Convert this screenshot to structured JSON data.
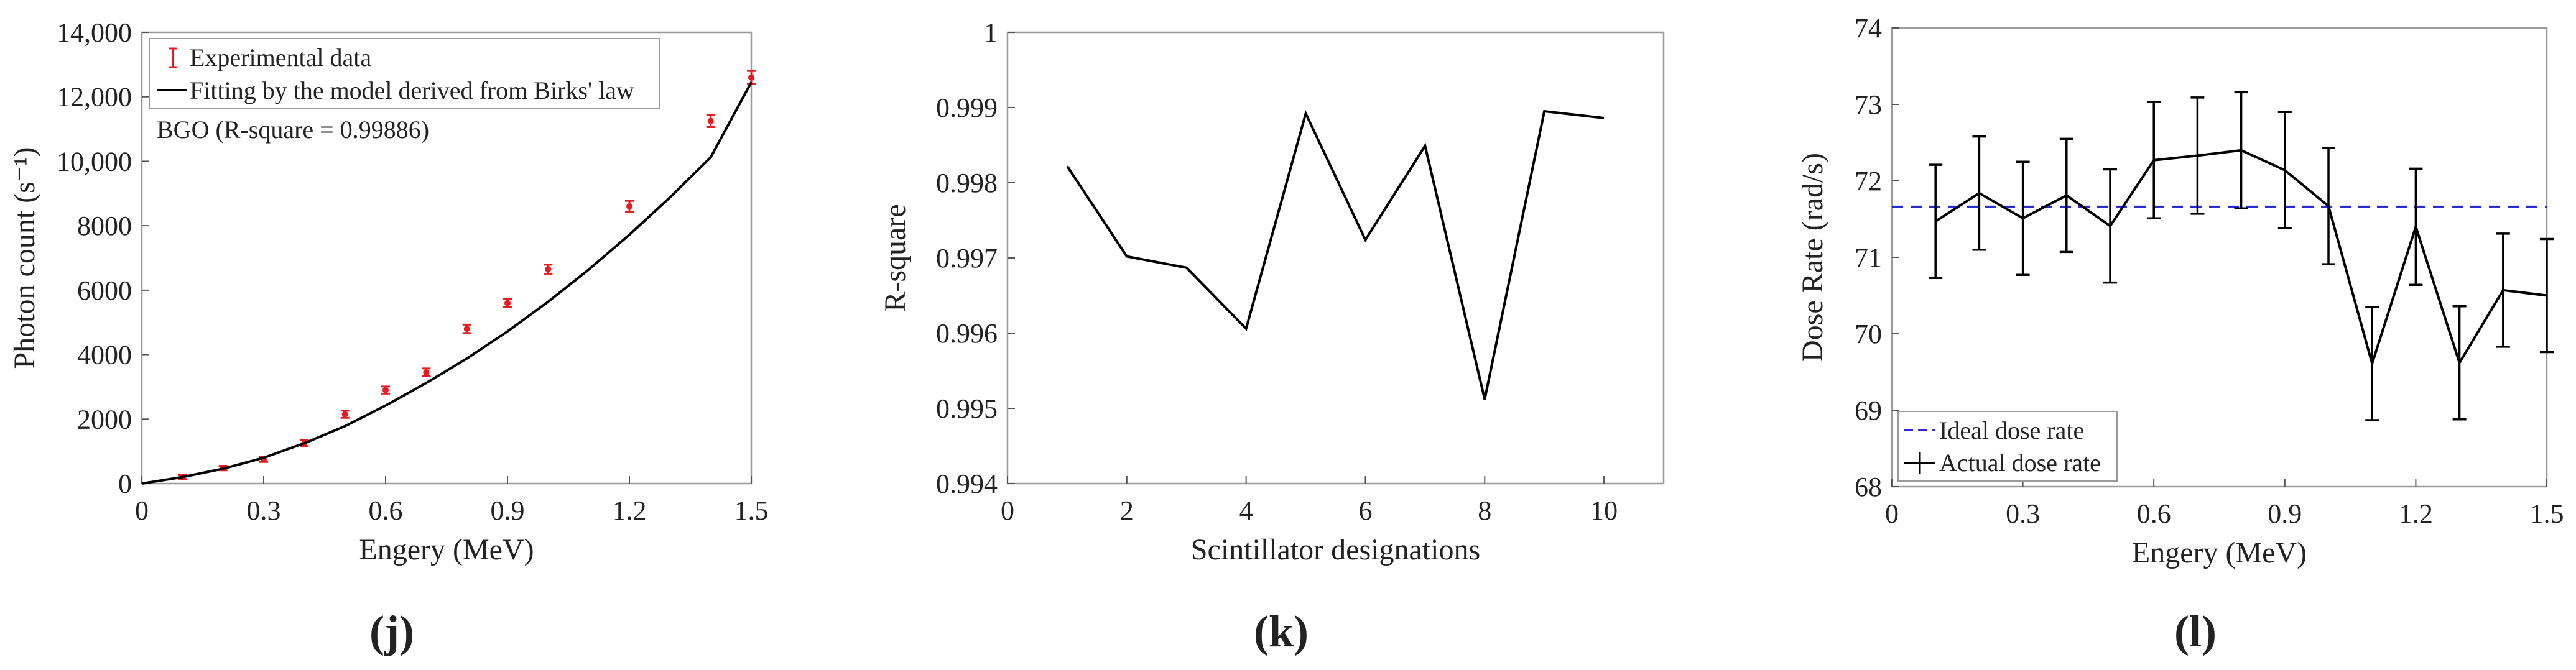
{
  "chart_data": [
    {
      "type": "scatter",
      "panel_label": "(j)",
      "xlabel": "Engery (MeV)",
      "ylabel": "Photon count (s⁻¹)",
      "xlim": [
        0,
        1.5
      ],
      "ylim": [
        0,
        14000
      ],
      "xticks": [
        0,
        0.3,
        0.6,
        0.9,
        1.2,
        1.5
      ],
      "xtick_labels": [
        "0",
        "0.3",
        "0.6",
        "0.9",
        "1.2",
        "1.5"
      ],
      "yticks": [
        0,
        2000,
        4000,
        6000,
        8000,
        10000,
        12000,
        14000
      ],
      "ytick_labels": [
        "0",
        "2000",
        "4000",
        "6000",
        "8000",
        "10,000",
        "12,000",
        "14,000"
      ],
      "annotation": "BGO (R-square = 0.99886)",
      "legend_position": "top-left",
      "series": [
        {
          "name": "Experimental data",
          "color": "#e8191f",
          "style": "errorbar",
          "x": [
            0.1,
            0.2,
            0.3,
            0.4,
            0.5,
            0.6,
            0.7,
            0.8,
            0.9,
            1.0,
            1.2,
            1.4,
            1.5
          ],
          "y": [
            200,
            480,
            750,
            1250,
            2150,
            2900,
            3450,
            4800,
            5600,
            6650,
            8600,
            11250,
            12600
          ],
          "err": [
            60,
            70,
            80,
            90,
            110,
            110,
            120,
            130,
            130,
            140,
            170,
            190,
            200
          ]
        },
        {
          "name": "Fitting by the model derived from Birks' law",
          "color": "#000000",
          "style": "line",
          "x": [
            0,
            0.1,
            0.2,
            0.3,
            0.4,
            0.5,
            0.6,
            0.7,
            0.8,
            0.9,
            1.0,
            1.1,
            1.2,
            1.3,
            1.4,
            1.5
          ],
          "y": [
            0,
            200,
            460,
            800,
            1250,
            1780,
            2420,
            3120,
            3880,
            4720,
            5640,
            6640,
            7720,
            8880,
            10120,
            12450
          ]
        }
      ]
    },
    {
      "type": "line",
      "panel_label": "(k)",
      "xlabel": "Scintillator designations",
      "ylabel": "R-square",
      "xlim": [
        0,
        11
      ],
      "ylim": [
        0.994,
        1.0
      ],
      "xticks": [
        0,
        2,
        4,
        6,
        8,
        10
      ],
      "xtick_labels": [
        "0",
        "2",
        "4",
        "6",
        "8",
        "10"
      ],
      "yticks": [
        0.994,
        0.995,
        0.996,
        0.997,
        0.998,
        0.999,
        1.0
      ],
      "ytick_labels": [
        "0.994",
        "0.995",
        "0.996",
        "0.997",
        "0.998",
        "0.999",
        "1"
      ],
      "series": [
        {
          "color": "#000000",
          "x": [
            1,
            2,
            3,
            4,
            5,
            6,
            7,
            8,
            9,
            10
          ],
          "y": [
            0.99822,
            0.99702,
            0.99687,
            0.99606,
            0.99892,
            0.99724,
            0.99849,
            0.99512,
            0.99895,
            0.99886
          ]
        }
      ]
    },
    {
      "type": "line",
      "panel_label": "(l)",
      "xlabel": "Engery (MeV)",
      "ylabel": "Dose Rate (rad/s)",
      "xlim": [
        0,
        1.5
      ],
      "ylim": [
        68,
        74
      ],
      "xticks": [
        0,
        0.3,
        0.6,
        0.9,
        1.2,
        1.5
      ],
      "xtick_labels": [
        "0",
        "0.3",
        "0.6",
        "0.9",
        "1.2",
        "1.5"
      ],
      "yticks": [
        68,
        69,
        70,
        71,
        72,
        73,
        74
      ],
      "ytick_labels": [
        "68",
        "69",
        "70",
        "71",
        "72",
        "73",
        "74"
      ],
      "legend_position": "bottom-left",
      "series": [
        {
          "name": "Ideal dose rate",
          "color": "#2b2bd6",
          "style": "dashed",
          "x": [
            0,
            1.5
          ],
          "y": [
            71.66,
            71.66
          ]
        },
        {
          "name": "Actual dose rate",
          "color": "#000000",
          "style": "errorbar-line",
          "x": [
            0.1,
            0.2,
            0.3,
            0.4,
            0.5,
            0.6,
            0.7,
            0.8,
            0.9,
            1.0,
            1.1,
            1.2,
            1.3,
            1.4,
            1.5
          ],
          "y": [
            71.47,
            71.84,
            71.51,
            71.81,
            71.41,
            72.27,
            72.33,
            72.4,
            72.14,
            71.67,
            69.61,
            71.4,
            69.62,
            70.57,
            70.5
          ],
          "err": [
            0.74,
            0.74,
            0.74,
            0.74,
            0.74,
            0.76,
            0.76,
            0.76,
            0.76,
            0.76,
            0.74,
            0.76,
            0.74,
            0.74,
            0.74
          ]
        }
      ]
    }
  ]
}
